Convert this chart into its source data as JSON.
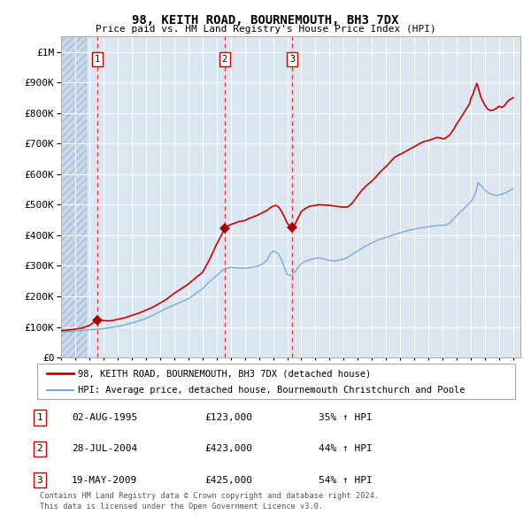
{
  "title": "98, KEITH ROAD, BOURNEMOUTH, BH3 7DX",
  "subtitle": "Price paid vs. HM Land Registry's House Price Index (HPI)",
  "xlim_start": 1993.0,
  "xlim_end": 2025.5,
  "ylim_min": 0,
  "ylim_max": 1050000,
  "bg_color": "#dce6f1",
  "hatch_color": "#c8d8e8",
  "grid_color": "#ffffff",
  "red_line_color": "#cc0000",
  "blue_line_color": "#7aaadd",
  "purchase_marker_color": "#aa0000",
  "dashed_line_color": "#ee3333",
  "legend_entries": [
    "98, KEITH ROAD, BOURNEMOUTH, BH3 7DX (detached house)",
    "HPI: Average price, detached house, Bournemouth Christchurch and Poole"
  ],
  "transactions": [
    {
      "num": 1,
      "date": "02-AUG-1995",
      "price": 123000,
      "pct": "35%",
      "year": 1995.58
    },
    {
      "num": 2,
      "date": "28-JUL-2004",
      "price": 423000,
      "pct": "44%",
      "year": 2004.57
    },
    {
      "num": 3,
      "date": "19-MAY-2009",
      "price": 425000,
      "pct": "54%",
      "year": 2009.37
    }
  ],
  "footer_line1": "Contains HM Land Registry data © Crown copyright and database right 2024.",
  "footer_line2": "This data is licensed under the Open Government Licence v3.0.",
  "ytick_labels": [
    "£0",
    "£100K",
    "£200K",
    "£300K",
    "£400K",
    "£500K",
    "£600K",
    "£700K",
    "£800K",
    "£900K",
    "£1M"
  ],
  "ytick_values": [
    0,
    100000,
    200000,
    300000,
    400000,
    500000,
    600000,
    700000,
    800000,
    900000,
    1000000
  ],
  "red_line_pts": [
    [
      1993.0,
      88000
    ],
    [
      1993.5,
      90000
    ],
    [
      1994.0,
      93000
    ],
    [
      1994.5,
      97000
    ],
    [
      1995.0,
      105000
    ],
    [
      1995.58,
      123000
    ],
    [
      1995.8,
      122000
    ],
    [
      1996.0,
      121000
    ],
    [
      1996.3,
      120000
    ],
    [
      1996.6,
      121000
    ],
    [
      1997.0,
      125000
    ],
    [
      1997.5,
      130000
    ],
    [
      1998.0,
      138000
    ],
    [
      1998.5,
      145000
    ],
    [
      1999.0,
      155000
    ],
    [
      1999.5,
      165000
    ],
    [
      2000.0,
      178000
    ],
    [
      2000.5,
      192000
    ],
    [
      2001.0,
      210000
    ],
    [
      2001.5,
      225000
    ],
    [
      2002.0,
      240000
    ],
    [
      2002.5,
      260000
    ],
    [
      2003.0,
      278000
    ],
    [
      2003.5,
      320000
    ],
    [
      2004.0,
      370000
    ],
    [
      2004.4,
      405000
    ],
    [
      2004.57,
      423000
    ],
    [
      2004.7,
      428000
    ],
    [
      2005.0,
      435000
    ],
    [
      2005.3,
      440000
    ],
    [
      2005.6,
      445000
    ],
    [
      2006.0,
      448000
    ],
    [
      2006.3,
      455000
    ],
    [
      2006.6,
      460000
    ],
    [
      2007.0,
      468000
    ],
    [
      2007.3,
      475000
    ],
    [
      2007.6,
      482000
    ],
    [
      2007.8,
      490000
    ],
    [
      2008.0,
      495000
    ],
    [
      2008.2,
      498000
    ],
    [
      2008.4,
      492000
    ],
    [
      2008.6,
      478000
    ],
    [
      2008.8,
      460000
    ],
    [
      2009.0,
      440000
    ],
    [
      2009.2,
      428000
    ],
    [
      2009.37,
      425000
    ],
    [
      2009.5,
      432000
    ],
    [
      2009.7,
      450000
    ],
    [
      2009.9,
      468000
    ],
    [
      2010.0,
      478000
    ],
    [
      2010.3,
      488000
    ],
    [
      2010.6,
      495000
    ],
    [
      2011.0,
      498000
    ],
    [
      2011.3,
      500000
    ],
    [
      2011.6,
      499000
    ],
    [
      2012.0,
      498000
    ],
    [
      2012.3,
      496000
    ],
    [
      2012.6,
      494000
    ],
    [
      2013.0,
      492000
    ],
    [
      2013.3,
      493000
    ],
    [
      2013.6,
      505000
    ],
    [
      2014.0,
      530000
    ],
    [
      2014.3,
      548000
    ],
    [
      2014.6,
      562000
    ],
    [
      2015.0,
      578000
    ],
    [
      2015.3,
      592000
    ],
    [
      2015.6,
      608000
    ],
    [
      2016.0,
      625000
    ],
    [
      2016.3,
      640000
    ],
    [
      2016.6,
      655000
    ],
    [
      2017.0,
      665000
    ],
    [
      2017.3,
      672000
    ],
    [
      2017.6,
      680000
    ],
    [
      2018.0,
      690000
    ],
    [
      2018.3,
      698000
    ],
    [
      2018.6,
      705000
    ],
    [
      2018.8,
      708000
    ],
    [
      2019.0,
      710000
    ],
    [
      2019.3,
      715000
    ],
    [
      2019.6,
      720000
    ],
    [
      2019.9,
      718000
    ],
    [
      2020.0,
      715000
    ],
    [
      2020.2,
      718000
    ],
    [
      2020.5,
      728000
    ],
    [
      2020.8,
      748000
    ],
    [
      2021.0,
      765000
    ],
    [
      2021.3,
      785000
    ],
    [
      2021.6,
      808000
    ],
    [
      2021.9,
      830000
    ],
    [
      2022.0,
      848000
    ],
    [
      2022.15,
      862000
    ],
    [
      2022.25,
      876000
    ],
    [
      2022.35,
      888000
    ],
    [
      2022.42,
      897000
    ],
    [
      2022.5,
      885000
    ],
    [
      2022.6,
      868000
    ],
    [
      2022.7,
      852000
    ],
    [
      2022.85,
      838000
    ],
    [
      2023.0,
      825000
    ],
    [
      2023.2,
      812000
    ],
    [
      2023.4,
      808000
    ],
    [
      2023.6,
      810000
    ],
    [
      2023.8,
      815000
    ],
    [
      2024.0,
      822000
    ],
    [
      2024.2,
      818000
    ],
    [
      2024.4,
      825000
    ],
    [
      2024.6,
      838000
    ],
    [
      2024.8,
      845000
    ],
    [
      2025.0,
      850000
    ]
  ],
  "blue_line_pts": [
    [
      1993.0,
      83000
    ],
    [
      1993.5,
      85000
    ],
    [
      1994.0,
      87000
    ],
    [
      1994.5,
      89000
    ],
    [
      1995.0,
      91000
    ],
    [
      1995.58,
      92500
    ],
    [
      1996.0,
      95000
    ],
    [
      1996.5,
      98000
    ],
    [
      1997.0,
      102000
    ],
    [
      1997.5,
      107000
    ],
    [
      1998.0,
      113000
    ],
    [
      1998.5,
      120000
    ],
    [
      1999.0,
      128000
    ],
    [
      1999.5,
      138000
    ],
    [
      2000.0,
      150000
    ],
    [
      2000.5,
      162000
    ],
    [
      2001.0,
      172000
    ],
    [
      2001.5,
      182000
    ],
    [
      2002.0,
      192000
    ],
    [
      2002.5,
      208000
    ],
    [
      2003.0,
      225000
    ],
    [
      2003.5,
      248000
    ],
    [
      2004.0,
      268000
    ],
    [
      2004.3,
      280000
    ],
    [
      2004.57,
      291000
    ],
    [
      2005.0,
      295000
    ],
    [
      2005.5,
      293000
    ],
    [
      2006.0,
      292000
    ],
    [
      2006.5,
      295000
    ],
    [
      2007.0,
      300000
    ],
    [
      2007.3,
      308000
    ],
    [
      2007.6,
      320000
    ],
    [
      2007.8,
      340000
    ],
    [
      2008.0,
      348000
    ],
    [
      2008.2,
      346000
    ],
    [
      2008.4,
      338000
    ],
    [
      2008.6,
      320000
    ],
    [
      2008.8,
      295000
    ],
    [
      2009.0,
      272000
    ],
    [
      2009.2,
      268000
    ],
    [
      2009.37,
      270000
    ],
    [
      2009.5,
      278000
    ],
    [
      2009.7,
      290000
    ],
    [
      2009.9,
      302000
    ],
    [
      2010.0,
      308000
    ],
    [
      2010.3,
      315000
    ],
    [
      2010.6,
      320000
    ],
    [
      2011.0,
      325000
    ],
    [
      2011.3,
      326000
    ],
    [
      2011.6,
      322000
    ],
    [
      2012.0,
      318000
    ],
    [
      2012.3,
      316000
    ],
    [
      2012.6,
      318000
    ],
    [
      2013.0,
      322000
    ],
    [
      2013.3,
      328000
    ],
    [
      2013.6,
      338000
    ],
    [
      2014.0,
      348000
    ],
    [
      2014.3,
      358000
    ],
    [
      2014.6,
      366000
    ],
    [
      2015.0,
      375000
    ],
    [
      2015.3,
      382000
    ],
    [
      2015.6,
      388000
    ],
    [
      2016.0,
      393000
    ],
    [
      2016.3,
      398000
    ],
    [
      2016.6,
      403000
    ],
    [
      2017.0,
      408000
    ],
    [
      2017.3,
      412000
    ],
    [
      2017.6,
      416000
    ],
    [
      2018.0,
      420000
    ],
    [
      2018.3,
      423000
    ],
    [
      2018.6,
      425000
    ],
    [
      2019.0,
      428000
    ],
    [
      2019.3,
      430000
    ],
    [
      2019.6,
      432000
    ],
    [
      2019.9,
      433000
    ],
    [
      2020.0,
      432000
    ],
    [
      2020.2,
      433000
    ],
    [
      2020.5,
      440000
    ],
    [
      2020.8,
      455000
    ],
    [
      2021.0,
      465000
    ],
    [
      2021.3,
      478000
    ],
    [
      2021.6,
      492000
    ],
    [
      2021.9,
      505000
    ],
    [
      2022.0,
      510000
    ],
    [
      2022.2,
      525000
    ],
    [
      2022.4,
      548000
    ],
    [
      2022.5,
      572000
    ],
    [
      2022.6,
      568000
    ],
    [
      2022.8,
      558000
    ],
    [
      2023.0,
      548000
    ],
    [
      2023.2,
      540000
    ],
    [
      2023.4,
      535000
    ],
    [
      2023.6,
      532000
    ],
    [
      2023.8,
      530000
    ],
    [
      2024.0,
      532000
    ],
    [
      2024.2,
      535000
    ],
    [
      2024.4,
      538000
    ],
    [
      2024.6,
      542000
    ],
    [
      2024.8,
      548000
    ],
    [
      2025.0,
      552000
    ]
  ]
}
